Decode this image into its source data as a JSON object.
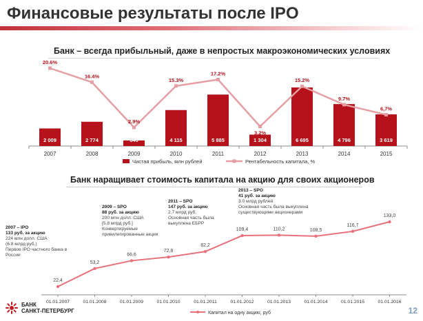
{
  "page": {
    "title": "Финансовые результаты после IPO",
    "number": "12",
    "bank_name_line1": "БАНК",
    "bank_name_line2": "САНКТ-ПЕТЕРБУРГ"
  },
  "colors": {
    "accent": "#b5121b",
    "line_pink": "#e59ea3",
    "line_red": "#e8707a",
    "grid": "#d9d9d9"
  },
  "chart_data": [
    {
      "type": "bar",
      "title": "Банк – всегда прибыльный, даже в непростых макроэкономических условиях",
      "categories": [
        "2007",
        "2008",
        "2009",
        "2010",
        "2011",
        "2012",
        "2013",
        "2014",
        "2015"
      ],
      "series": [
        {
          "name": "Чистая прибыль, млн рублей",
          "type": "bar",
          "values": [
            2009,
            2774,
            640,
            4115,
            5885,
            1304,
            6695,
            4796,
            3619
          ],
          "labels": [
            "2 009",
            "2 774",
            "640",
            "4 115",
            "5 885",
            "1 304",
            "6 695",
            "4 796",
            "3 619"
          ]
        },
        {
          "name": "Рентабельность капитала, %",
          "type": "line",
          "values": [
            20.6,
            16.4,
            2.9,
            15.3,
            17.2,
            3.2,
            15.2,
            9.7,
            6.7
          ],
          "labels": [
            "20.6%",
            "16.4%",
            "2.9%",
            "15.3%",
            "17.2%",
            "3.2%",
            "15.2%",
            "9.7%",
            "6,7%"
          ]
        }
      ],
      "legend_position": "bottom"
    },
    {
      "type": "line",
      "title": "Банк наращивает стоимость капитала на акцию для своих акционеров",
      "categories": [
        "01.01.2007",
        "01.01.2008",
        "01.01.2009",
        "01.01.2010",
        "01.01.2011",
        "01.01.2012",
        "01.01.2013",
        "01.01.2014",
        "01.01.2015",
        "01.01.2016"
      ],
      "series": [
        {
          "name": "Капитал на одну акцию, руб",
          "values": [
            22.4,
            53.2,
            66.6,
            72.8,
            82.2,
            109.4,
            110.2,
            108.5,
            116.7,
            133.0
          ],
          "labels": [
            "22,4",
            "53,2",
            "66,6",
            "72,8",
            "82,2",
            "109,4",
            "110,2",
            "108,5",
            "116,7",
            "133,0"
          ]
        }
      ],
      "legend_position": "bottom",
      "annotations": [
        {
          "heading": "2007 – IPO",
          "price": "133 руб. за акцию",
          "lines": [
            "224 млн долл. США",
            "(6.8 млрд руб.)",
            "Первое IPO частного банка в",
            "России"
          ]
        },
        {
          "heading": "2009 – SPO",
          "price": "88 руб. за акцию",
          "lines": [
            "200 млн долл. США",
            "[5.8 млрд руб.]",
            "Конвертируемые",
            "привилегированные акции"
          ]
        },
        {
          "heading": "2011 – SPO",
          "price": "147 руб. за акцию",
          "lines": [
            "2.7 млрд руб.",
            "Основная часть была",
            "выкуплена ЕБРР"
          ]
        },
        {
          "heading": "2013 – SPO",
          "price": "41 руб. за акцию",
          "lines": [
            "3.0 млрд рублей",
            "Основная часть была выкуплена",
            "существующими акционерами"
          ]
        }
      ]
    }
  ]
}
